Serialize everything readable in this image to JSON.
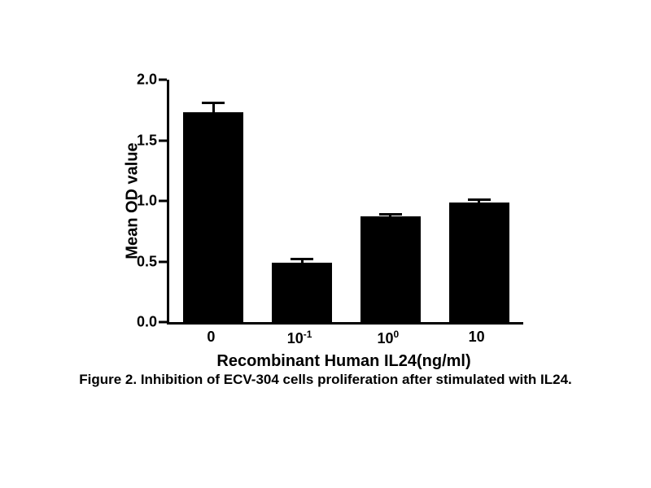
{
  "figure": {
    "caption": "Figure 2. Inhibition of ECV-304 cells proliferation after stimulated with IL24."
  },
  "chart_data": {
    "type": "bar",
    "title": "",
    "xlabel": "Recombinant Human IL24(ng/ml)",
    "ylabel": "Mean OD value",
    "categories": [
      "0",
      "10^-1",
      "10^0",
      "10"
    ],
    "categories_rich": [
      {
        "base": "0",
        "sup": ""
      },
      {
        "base": "10",
        "sup": "-1"
      },
      {
        "base": "10",
        "sup": "0"
      },
      {
        "base": "10",
        "sup": ""
      }
    ],
    "values": [
      1.73,
      0.49,
      0.87,
      0.99
    ],
    "errors_plus": [
      0.08,
      0.03,
      0.02,
      0.02
    ],
    "ylim": [
      0.0,
      2.0
    ],
    "yticks": [
      0.0,
      0.5,
      1.0,
      1.5,
      2.0
    ],
    "ytick_labels": [
      "0.0",
      "0.5",
      "1.0",
      "1.5",
      "2.0"
    ],
    "bar_color": "#000000",
    "axis_color": "#000000",
    "background_color": "#ffffff",
    "grid": false,
    "legend": null,
    "error_bar_style": "upper-cap"
  }
}
